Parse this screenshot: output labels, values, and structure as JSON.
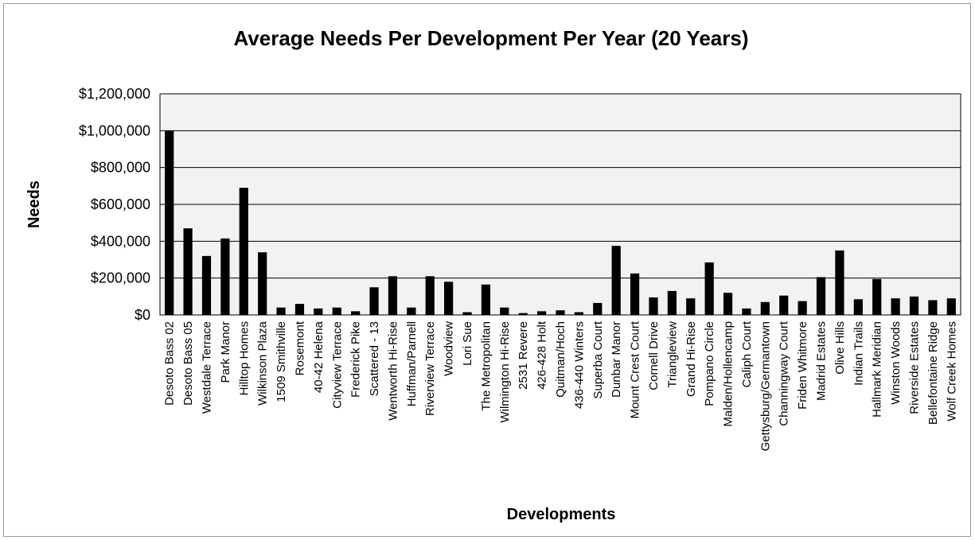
{
  "chart_data": {
    "type": "bar",
    "title": "Average Needs Per Development Per Year (20 Years)",
    "xlabel": "Developments",
    "ylabel": "Needs",
    "ylim": [
      0,
      1200000
    ],
    "yticks": [
      0,
      200000,
      400000,
      600000,
      800000,
      1000000,
      1200000
    ],
    "ytick_labels": [
      "$0",
      "$200,000",
      "$400,000",
      "$600,000",
      "$800,000",
      "$1,000,000",
      "$1,200,000"
    ],
    "grid": true,
    "legend": "none",
    "bar_color": "#000000",
    "plot_background": "#f2f2f2",
    "categories": [
      "Desoto Bass 02",
      "Desoto Bass 05",
      "Westdale Terrace",
      "Park Manor",
      "Hilltop Homes",
      "Wilkinson Plaza",
      "1509 Smithville",
      "Rosemont",
      "40-42 Helena",
      "Cityview Terrace",
      "Frederick Pike",
      "Scattered - 13",
      "Wentworth Hi-Rise",
      "Huffman/Parnell",
      "Riverview Terrace",
      "Woodview",
      "Lori Sue",
      "The Metropolitan",
      "Wilmington Hi-Rise",
      "2531 Revere",
      "426-428 Holt",
      "Quitman/Hoch",
      "436-440 Winters",
      "Superba Court",
      "Dunbar Manor",
      "Mount Crest Court",
      "Cornell Drive",
      "Triangleview",
      "Grand Hi-Rise",
      "Pompano Circle",
      "Malden/Hollencamp",
      "Caliph Court",
      "Gettysburg/Germantown",
      "Channingway Court",
      "Friden Whitmore",
      "Madrid Estates",
      "Olive Hills",
      "Indian Trails",
      "Hallmark Meridian",
      "Winston Woods",
      "Riverside Estates",
      "Bellefontaine Ridge",
      "Wolf Creek Homes"
    ],
    "values": [
      1000000,
      470000,
      320000,
      415000,
      690000,
      340000,
      40000,
      60000,
      35000,
      40000,
      20000,
      150000,
      210000,
      40000,
      210000,
      180000,
      15000,
      165000,
      40000,
      10000,
      20000,
      25000,
      15000,
      65000,
      375000,
      225000,
      95000,
      130000,
      90000,
      285000,
      120000,
      35000,
      70000,
      105000,
      75000,
      205000,
      350000,
      85000,
      195000,
      90000,
      100000,
      80000,
      90000
    ]
  }
}
